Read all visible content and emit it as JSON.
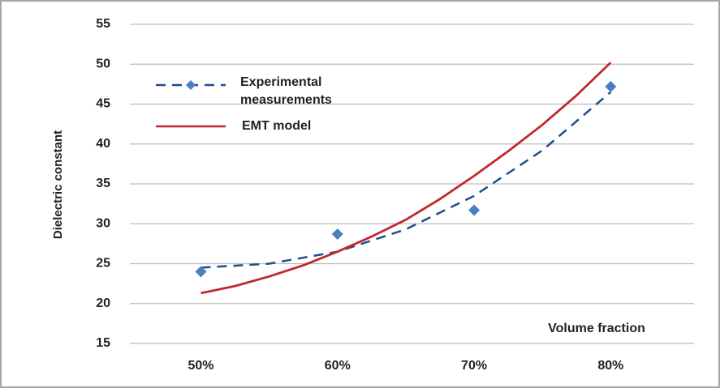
{
  "chart_data": {
    "type": "scatter",
    "y_label": "Dielectric constant",
    "x_label": "Volume fraction",
    "xlim": [
      44.8,
      86.1
    ],
    "xticks": [
      {
        "value": 50,
        "label": "50%"
      },
      {
        "value": 60,
        "label": "60%"
      },
      {
        "value": 70,
        "label": "70%"
      },
      {
        "value": 80,
        "label": "80%"
      }
    ],
    "ylim": [
      15,
      55
    ],
    "yticks": [
      15,
      20,
      25,
      30,
      35,
      40,
      45,
      50,
      55
    ],
    "grid": true,
    "legend": "upper left",
    "series": [
      {
        "name": "Experimental measurements",
        "color": "#1f4e8c",
        "marker_color": "#4a7fc4",
        "linestyle": "dashed",
        "x": [
          50,
          60,
          70,
          80
        ],
        "values": [
          24,
          28.7,
          31.7,
          47.2
        ],
        "trend": {
          "x": [
            50,
            55,
            60,
            65,
            70,
            75,
            80
          ],
          "values": [
            24.5,
            25,
            26.5,
            29.3,
            33.5,
            39.2,
            46.5
          ]
        }
      },
      {
        "name": "EMT model",
        "color": "#c0282d",
        "linestyle": "solid",
        "x": [
          50,
          52.5,
          55,
          57.5,
          60,
          62.5,
          65,
          67.5,
          70,
          72.5,
          75,
          77.5,
          80
        ],
        "values": [
          21.3,
          22.2,
          23.4,
          24.8,
          26.5,
          28.4,
          30.5,
          33.1,
          36,
          39.1,
          42.4,
          46.1,
          50.2
        ]
      }
    ]
  }
}
